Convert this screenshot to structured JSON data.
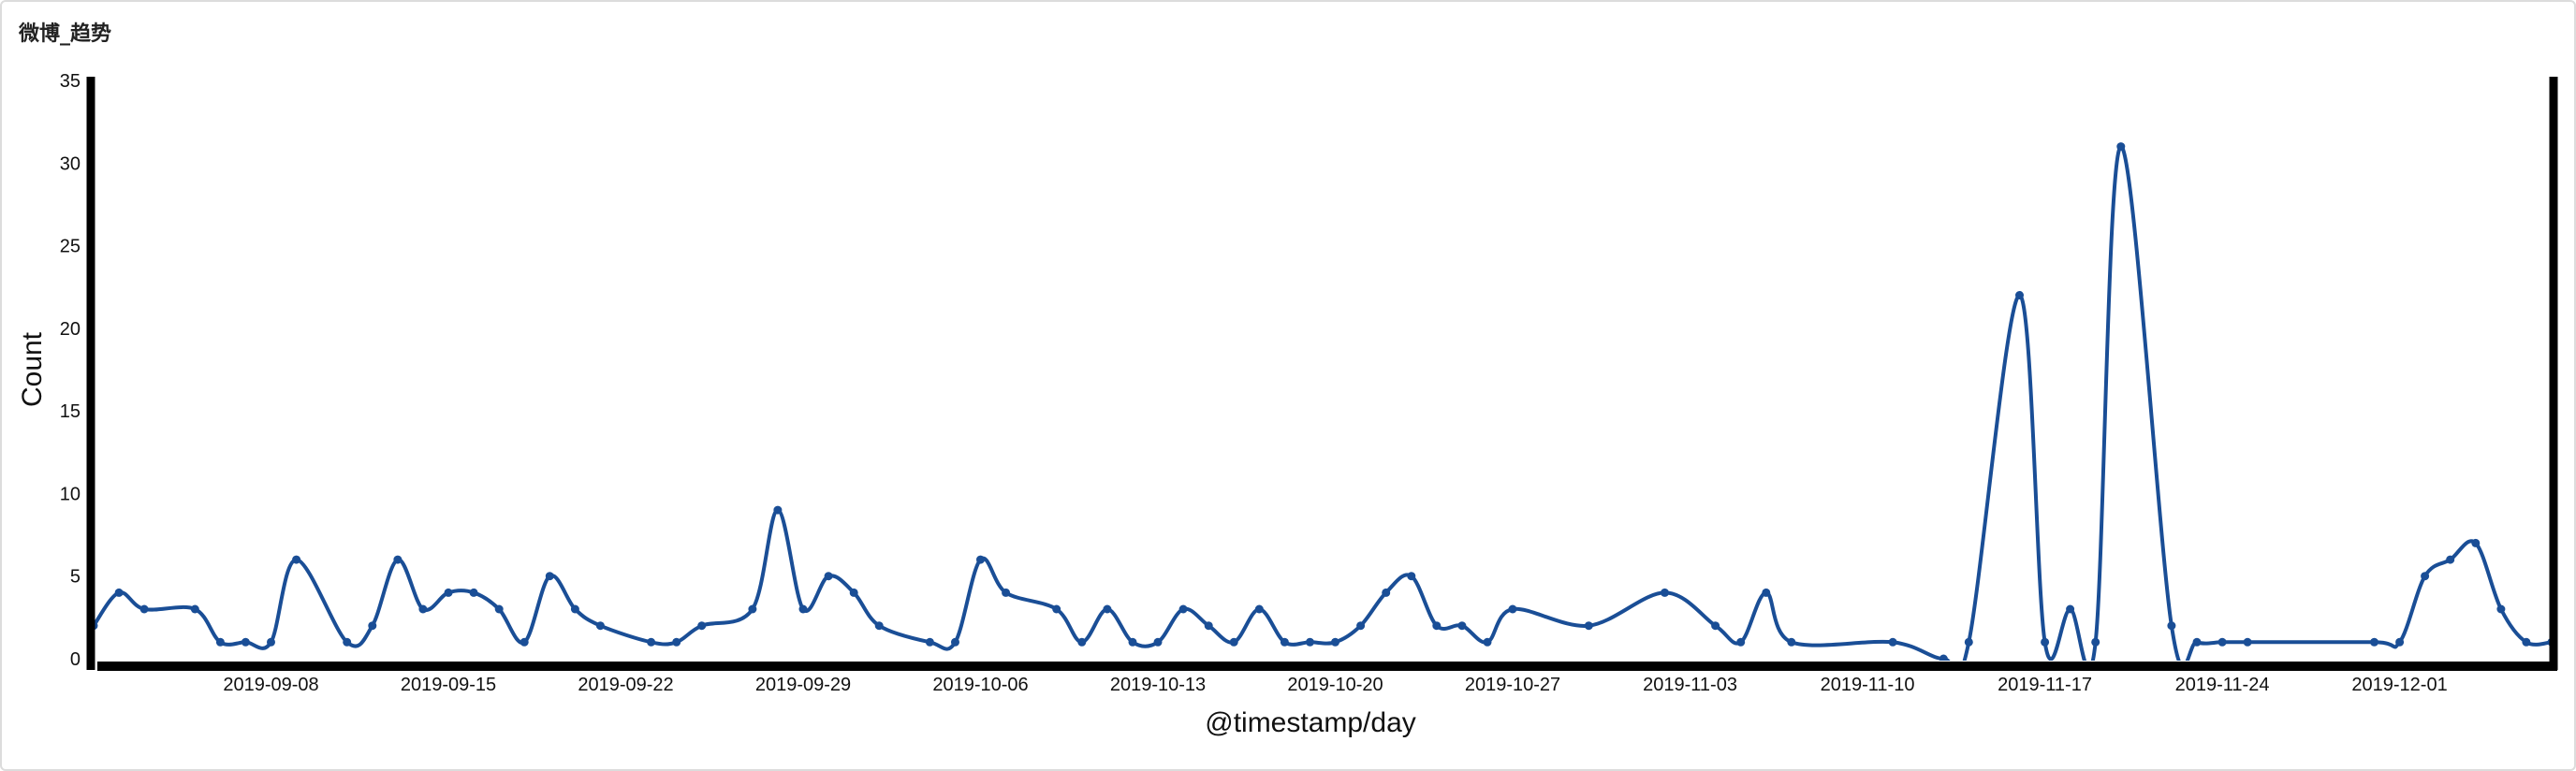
{
  "panel": {
    "title": "微博_趋势"
  },
  "colors": {
    "line": "#1a4e96",
    "axis": "#000000"
  },
  "chart_data": {
    "type": "line",
    "title": "",
    "xlabel": "@timestamp/day",
    "ylabel": "Count",
    "ylim": [
      0,
      35
    ],
    "yticks": [
      0,
      5,
      10,
      15,
      20,
      25,
      30,
      35
    ],
    "xlim": [
      "2019-09-01",
      "2019-12-05"
    ],
    "xticks": [
      "2019-09-08",
      "2019-09-15",
      "2019-09-22",
      "2019-09-29",
      "2019-10-06",
      "2019-10-13",
      "2019-10-20",
      "2019-10-27",
      "2019-11-03",
      "2019-11-10",
      "2019-11-17",
      "2019-11-24",
      "2019-12-01"
    ],
    "grid": false,
    "legend": "none",
    "series": [
      {
        "x": [
          "2019-09-01",
          "2019-09-02",
          "2019-09-03",
          "2019-09-05",
          "2019-09-06",
          "2019-09-07",
          "2019-09-08",
          "2019-09-09",
          "2019-09-11",
          "2019-09-12",
          "2019-09-13",
          "2019-09-14",
          "2019-09-15",
          "2019-09-16",
          "2019-09-17",
          "2019-09-18",
          "2019-09-19",
          "2019-09-20",
          "2019-09-21",
          "2019-09-23",
          "2019-09-24",
          "2019-09-25",
          "2019-09-27",
          "2019-09-28",
          "2019-09-29",
          "2019-09-30",
          "2019-10-01",
          "2019-10-02",
          "2019-10-04",
          "2019-10-05",
          "2019-10-06",
          "2019-10-07",
          "2019-10-09",
          "2019-10-10",
          "2019-10-11",
          "2019-10-12",
          "2019-10-13",
          "2019-10-14",
          "2019-10-15",
          "2019-10-16",
          "2019-10-17",
          "2019-10-18",
          "2019-10-19",
          "2019-10-20",
          "2019-10-21",
          "2019-10-22",
          "2019-10-23",
          "2019-10-24",
          "2019-10-25",
          "2019-10-26",
          "2019-10-27",
          "2019-10-30",
          "2019-11-02",
          "2019-11-04",
          "2019-11-05",
          "2019-11-06",
          "2019-11-07",
          "2019-11-11",
          "2019-11-13",
          "2019-11-14",
          "2019-11-16",
          "2019-11-17",
          "2019-11-18",
          "2019-11-19",
          "2019-11-20",
          "2019-11-22",
          "2019-11-23",
          "2019-11-24",
          "2019-11-25",
          "2019-11-30",
          "2019-12-01",
          "2019-12-02",
          "2019-12-03",
          "2019-12-04",
          "2019-12-05",
          "2019-12-06",
          "2019-12-07"
        ],
        "values": [
          2,
          4,
          3,
          3,
          1,
          1,
          1,
          6,
          1,
          2,
          6,
          3,
          4,
          4,
          3,
          1,
          5,
          3,
          2,
          1,
          1,
          2,
          3,
          9,
          3,
          5,
          4,
          2,
          1,
          1,
          6,
          4,
          3,
          1,
          3,
          1,
          1,
          3,
          2,
          1,
          3,
          1,
          1,
          1,
          2,
          4,
          5,
          2,
          2,
          1,
          3,
          2,
          4,
          2,
          1,
          4,
          1,
          1,
          0,
          1,
          22,
          1,
          3,
          1,
          31,
          2,
          1,
          1,
          1,
          1,
          1,
          5,
          6,
          7,
          3,
          1,
          1
        ]
      }
    ]
  }
}
